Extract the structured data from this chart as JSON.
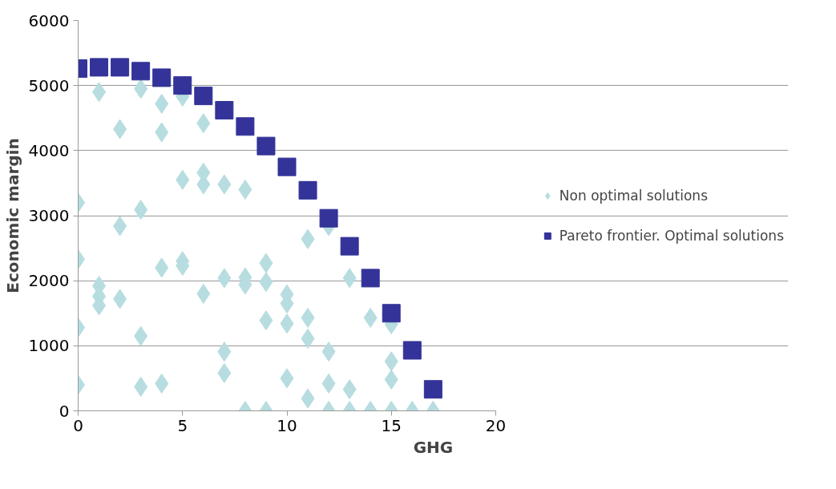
{
  "chart_data": {
    "type": "scatter",
    "xlabel": "GHG",
    "ylabel": "Economic margin",
    "xlim": [
      0,
      20
    ],
    "ylim": [
      0,
      6000
    ],
    "xticks": [
      0,
      5,
      10,
      15,
      20
    ],
    "yticks": [
      0,
      1000,
      2000,
      3000,
      4000,
      5000,
      6000
    ],
    "grid": "y",
    "legend": "right",
    "series": [
      {
        "name": "Non optimal solutions",
        "color": "#b7dde0",
        "marker": "diamond",
        "x": [
          0,
          0,
          0,
          0,
          1,
          1,
          1,
          1,
          2,
          2,
          2,
          3,
          3,
          3,
          3,
          4,
          4,
          4,
          4,
          5,
          5,
          5,
          5,
          6,
          6,
          6,
          6,
          7,
          7,
          7,
          7,
          8,
          8,
          8,
          8,
          9,
          9,
          9,
          9,
          10,
          10,
          10,
          10,
          11,
          11,
          11,
          11,
          12,
          12,
          12,
          12,
          13,
          13,
          13,
          14,
          14,
          15,
          15,
          15,
          15,
          16,
          17
        ],
        "values": [
          3200,
          2330,
          1280,
          400,
          4900,
          1920,
          1760,
          1620,
          4330,
          2840,
          1720,
          4950,
          3090,
          1150,
          370,
          4720,
          4280,
          2200,
          420,
          4830,
          3550,
          2300,
          2230,
          4420,
          3660,
          3480,
          1800,
          3480,
          2040,
          910,
          580,
          3400,
          2050,
          1940,
          0,
          2270,
          1980,
          1390,
          0,
          1790,
          1650,
          1340,
          500,
          2640,
          1430,
          1110,
          190,
          2840,
          910,
          420,
          0,
          2040,
          330,
          0,
          1430,
          0,
          1330,
          760,
          480,
          0,
          0,
          0
        ]
      },
      {
        "name": "Pareto frontier. Optimal solutions",
        "color": "#333399",
        "marker": "square",
        "x": [
          0,
          1,
          2,
          3,
          4,
          5,
          6,
          7,
          8,
          9,
          10,
          11,
          12,
          13,
          14,
          15,
          16,
          17
        ],
        "values": [
          5260,
          5280,
          5280,
          5220,
          5120,
          5000,
          4840,
          4620,
          4370,
          4070,
          3750,
          3390,
          2960,
          2530,
          2040,
          1500,
          930,
          330
        ]
      }
    ]
  }
}
